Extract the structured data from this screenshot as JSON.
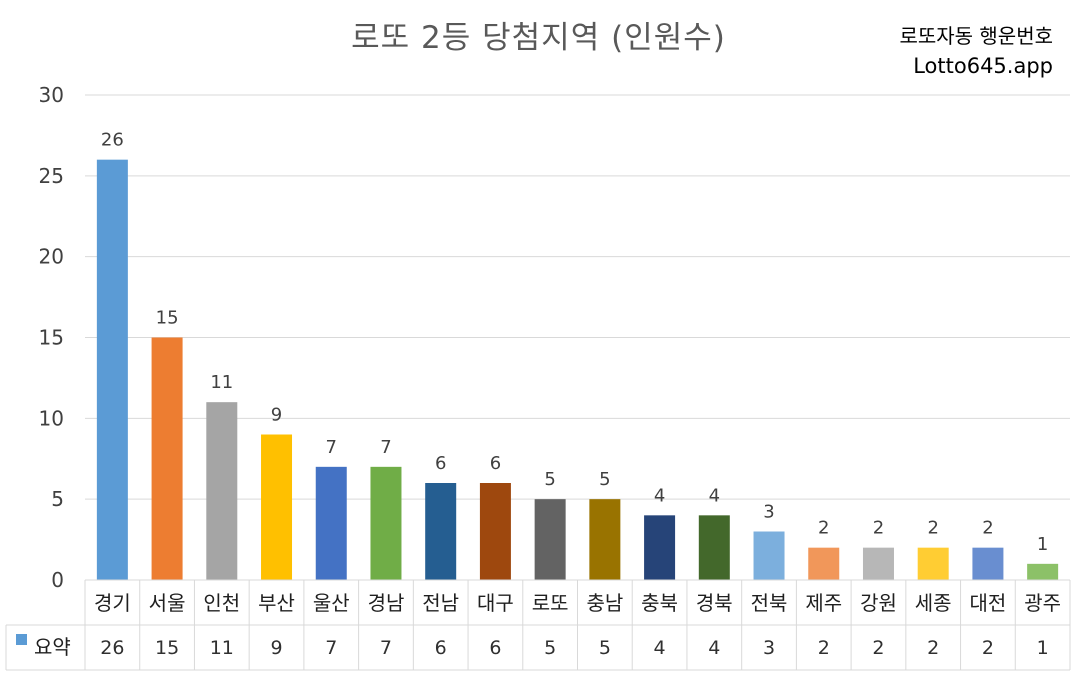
{
  "title": "로또 2등 당첨지역 (인원수)",
  "brand": {
    "name": "로또자동 행운번호",
    "url": "Lotto645.app"
  },
  "chart_data": {
    "type": "bar",
    "title": "로또 2등 당첨지역 (인원수)",
    "categories": [
      "경기",
      "서울",
      "인천",
      "부산",
      "울산",
      "경남",
      "전남",
      "대구",
      "로또",
      "충남",
      "충북",
      "경북",
      "전북",
      "제주",
      "강원",
      "세종",
      "대전",
      "광주"
    ],
    "series": [
      {
        "name": "요약",
        "values": [
          26,
          15,
          11,
          9,
          7,
          7,
          6,
          6,
          5,
          5,
          4,
          4,
          3,
          2,
          2,
          2,
          2,
          1
        ]
      }
    ],
    "bar_colors": [
      "#5B9BD5",
      "#ED7D31",
      "#A5A5A5",
      "#FFC000",
      "#4472C4",
      "#70AD47",
      "#255E91",
      "#9E480E",
      "#636363",
      "#997300",
      "#264478",
      "#43682B",
      "#7CAFDD",
      "#F1975A",
      "#B7B7B7",
      "#FFCD33",
      "#698ED0",
      "#8CC168"
    ],
    "ylim": [
      0,
      30
    ],
    "yticks": [
      0,
      5,
      10,
      15,
      20,
      25,
      30
    ],
    "grid": true,
    "data_table": true,
    "legend_key_color": "#5B9BD5"
  }
}
